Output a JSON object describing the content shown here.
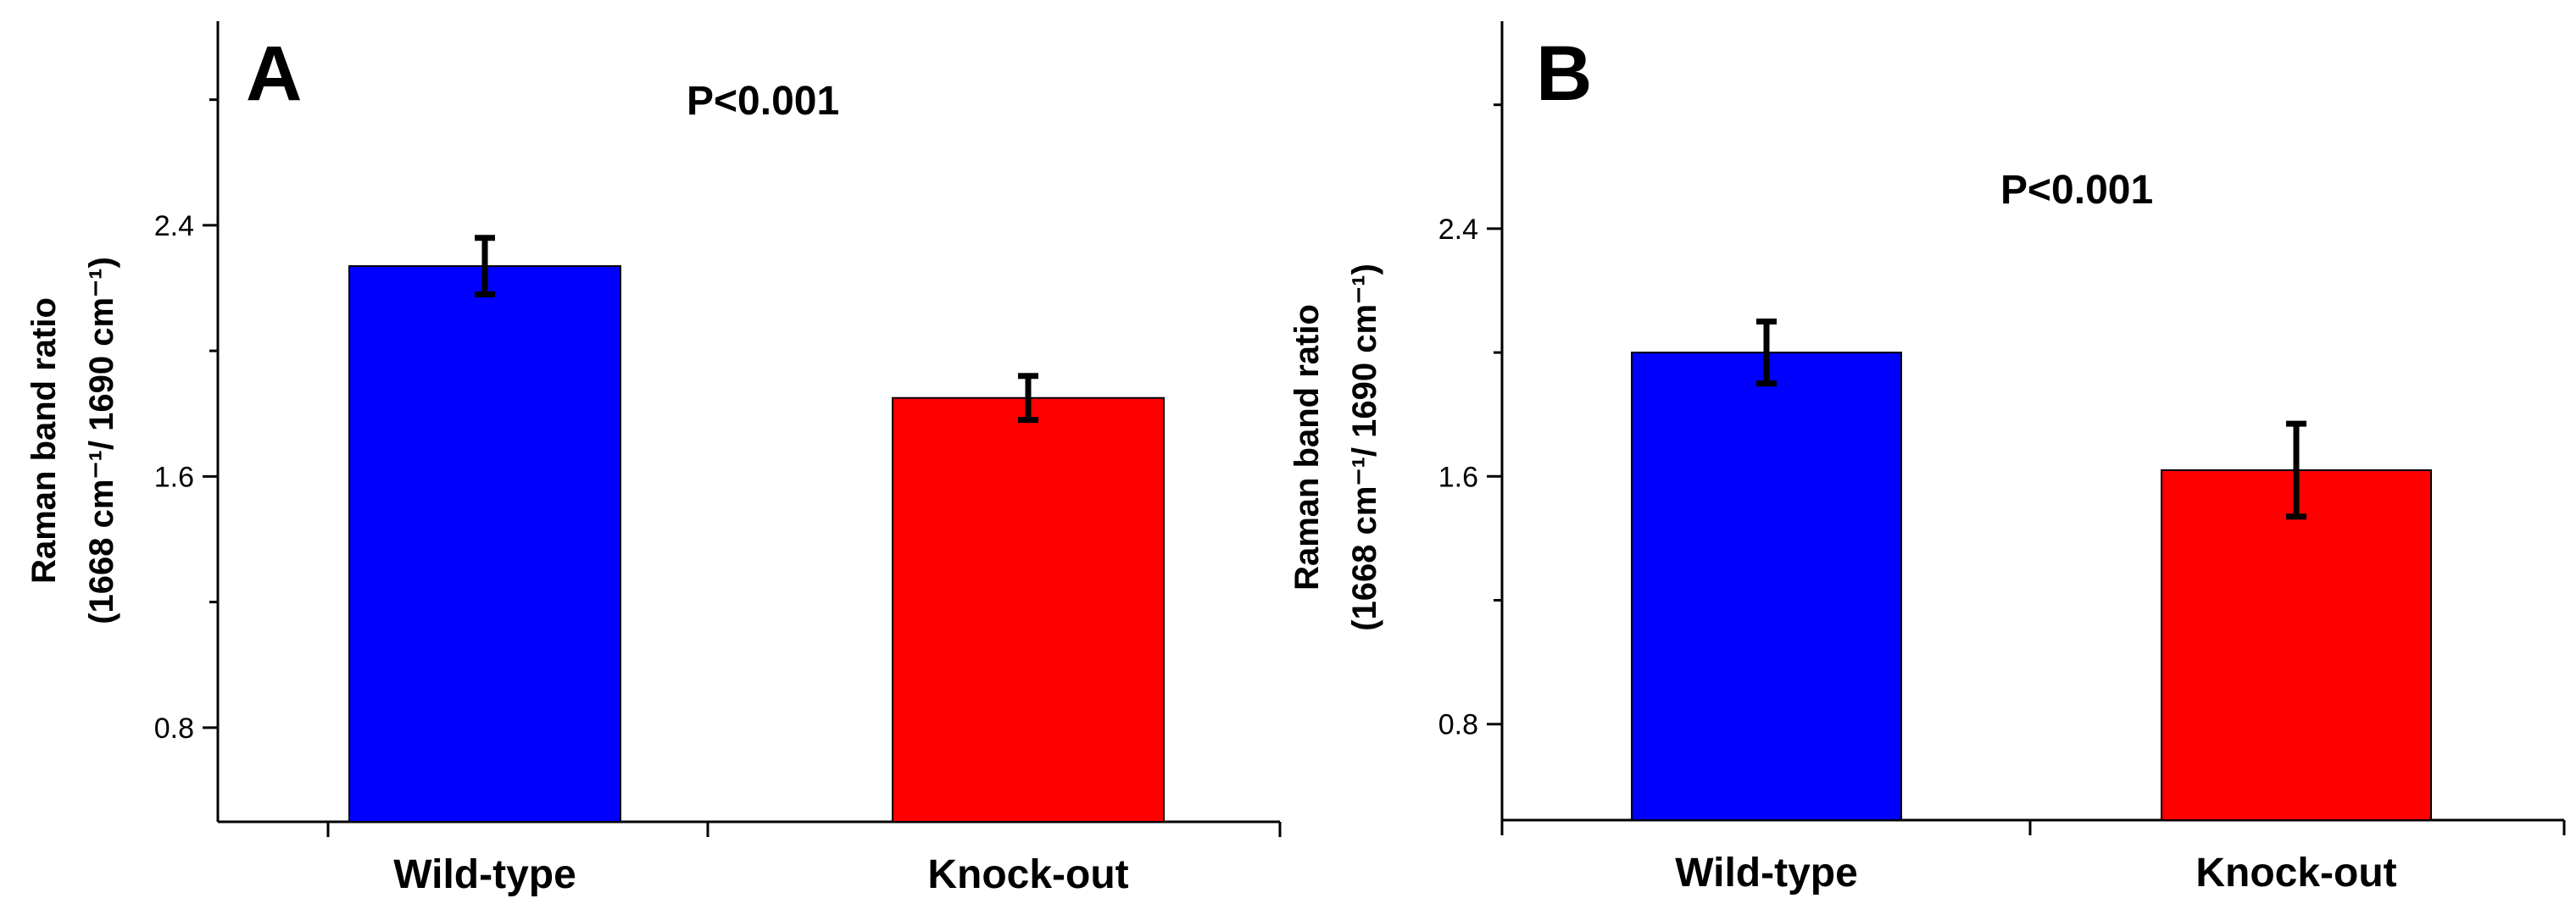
{
  "chart_data": [
    {
      "panel": "A",
      "type": "bar",
      "title": "",
      "annotation": "P<0.001",
      "categories": [
        "Wild-type",
        "Knock-out"
      ],
      "values": [
        2.27,
        1.85
      ],
      "errors": [
        0.09,
        0.07
      ],
      "colors": [
        "#0000ff",
        "#ff0000"
      ],
      "ylabel_line1": "Raman band ratio",
      "ylabel_line2": "(1668 cm⁻¹/ 1690 cm⁻¹)",
      "xlabel": "",
      "yticks": [
        "0.8",
        "1.6",
        "2.4"
      ],
      "ylim": [
        0.5,
        3.05
      ]
    },
    {
      "panel": "B",
      "type": "bar",
      "title": "",
      "annotation": "P<0.001",
      "categories": [
        "Wild-type",
        "Knock-out"
      ],
      "values": [
        2.0,
        1.62
      ],
      "errors": [
        0.1,
        0.15
      ],
      "colors": [
        "#0000ff",
        "#ff0000"
      ],
      "ylabel_line1": "Raman band ratio",
      "ylabel_line2": "(1668 cm⁻¹/ 1690 cm⁻¹)",
      "xlabel": "",
      "yticks": [
        "0.8",
        "1.6",
        "2.4"
      ],
      "ylim": [
        0.49,
        3.07
      ]
    }
  ]
}
